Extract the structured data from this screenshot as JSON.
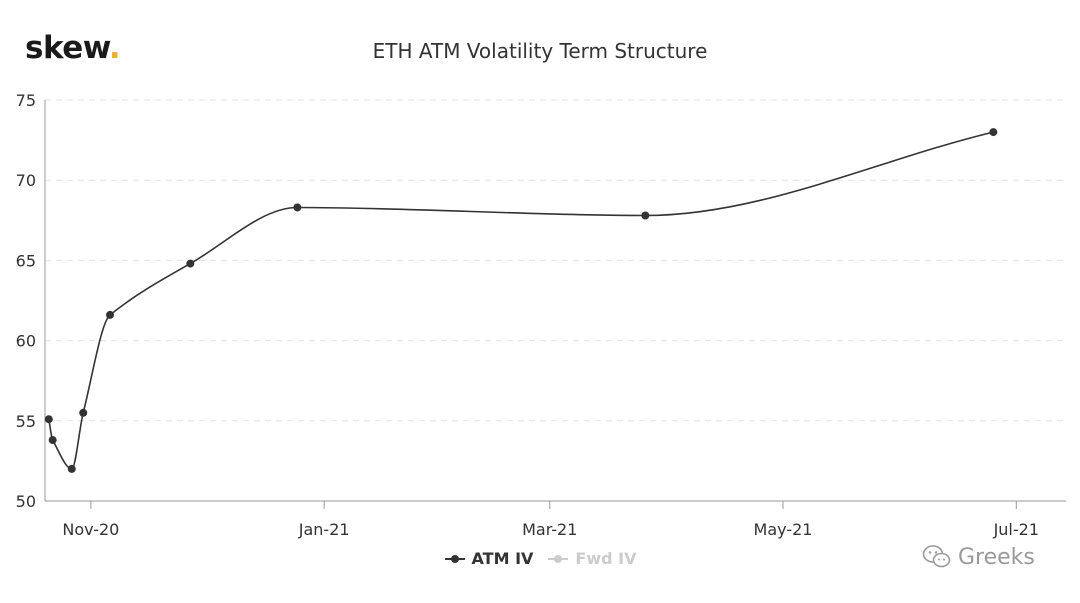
{
  "logo": {
    "text": "skew",
    "dot": "."
  },
  "chart_data": {
    "type": "line",
    "title": "ETH ATM Volatility Term Structure",
    "xlabel": "",
    "ylabel": "",
    "ylim": [
      50,
      75
    ],
    "yticks": [
      50,
      55,
      60,
      65,
      70,
      75
    ],
    "xlim": [
      "2020-10-20",
      "2021-07-14"
    ],
    "xticks": [
      {
        "date": "2020-11-01",
        "label": "Nov-20"
      },
      {
        "date": "2021-01-01",
        "label": "Jan-21"
      },
      {
        "date": "2021-03-01",
        "label": "Mar-21"
      },
      {
        "date": "2021-05-01",
        "label": "May-21"
      },
      {
        "date": "2021-07-01",
        "label": "Jul-21"
      }
    ],
    "grid": true,
    "legend_position": "bottom",
    "series": [
      {
        "name": "ATM IV",
        "color": "#333333",
        "visible": true,
        "points": [
          {
            "x": "2020-10-21",
            "y": 55.1
          },
          {
            "x": "2020-10-22",
            "y": 53.8
          },
          {
            "x": "2020-10-27",
            "y": 52.0
          },
          {
            "x": "2020-10-30",
            "y": 55.5
          },
          {
            "x": "2020-11-06",
            "y": 61.6
          },
          {
            "x": "2020-11-27",
            "y": 64.8
          },
          {
            "x": "2020-12-25",
            "y": 68.3
          },
          {
            "x": "2021-03-26",
            "y": 67.8
          },
          {
            "x": "2021-06-25",
            "y": 73.0
          }
        ]
      },
      {
        "name": "Fwd IV",
        "color": "#cccccc",
        "visible": false,
        "points": []
      }
    ]
  },
  "watermark": {
    "text": "Greeks",
    "icon": "wechat-icon"
  }
}
